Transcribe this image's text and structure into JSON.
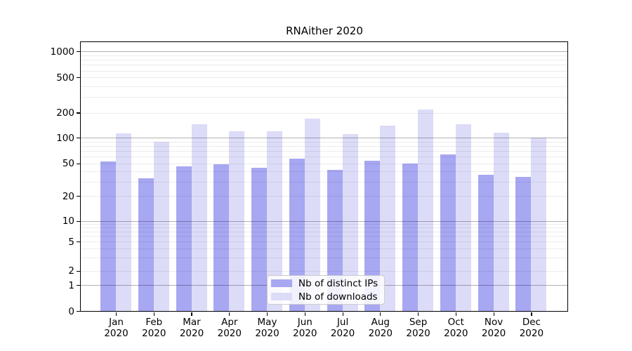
{
  "figure": {
    "title": "RNAither 2020"
  },
  "chart_data": {
    "type": "bar",
    "title": "RNAither 2020",
    "categories": [
      {
        "month": "Jan",
        "year": "2020"
      },
      {
        "month": "Feb",
        "year": "2020"
      },
      {
        "month": "Mar",
        "year": "2020"
      },
      {
        "month": "Apr",
        "year": "2020"
      },
      {
        "month": "May",
        "year": "2020"
      },
      {
        "month": "Jun",
        "year": "2020"
      },
      {
        "month": "Jul",
        "year": "2020"
      },
      {
        "month": "Aug",
        "year": "2020"
      },
      {
        "month": "Sep",
        "year": "2020"
      },
      {
        "month": "Oct",
        "year": "2020"
      },
      {
        "month": "Nov",
        "year": "2020"
      },
      {
        "month": "Dec",
        "year": "2020"
      }
    ],
    "series": [
      {
        "name": "Nb of distinct IPs",
        "color": "#a7a7f2",
        "values": [
          53,
          33,
          46,
          49,
          44,
          57,
          42,
          54,
          50,
          64,
          36,
          34
        ]
      },
      {
        "name": "Nb of downloads",
        "color": "#dcdcf8",
        "values": [
          114,
          89,
          145,
          119,
          119,
          170,
          110,
          140,
          219,
          146,
          116,
          100
        ]
      }
    ],
    "yticks": [
      0,
      1,
      2,
      5,
      10,
      20,
      50,
      100,
      200,
      500,
      1000
    ],
    "yscale": "log-with-zero-baseline",
    "ylim": [
      0,
      1280
    ],
    "xlabel": "",
    "ylabel": "",
    "grid": true,
    "legend_position": "lower center"
  }
}
